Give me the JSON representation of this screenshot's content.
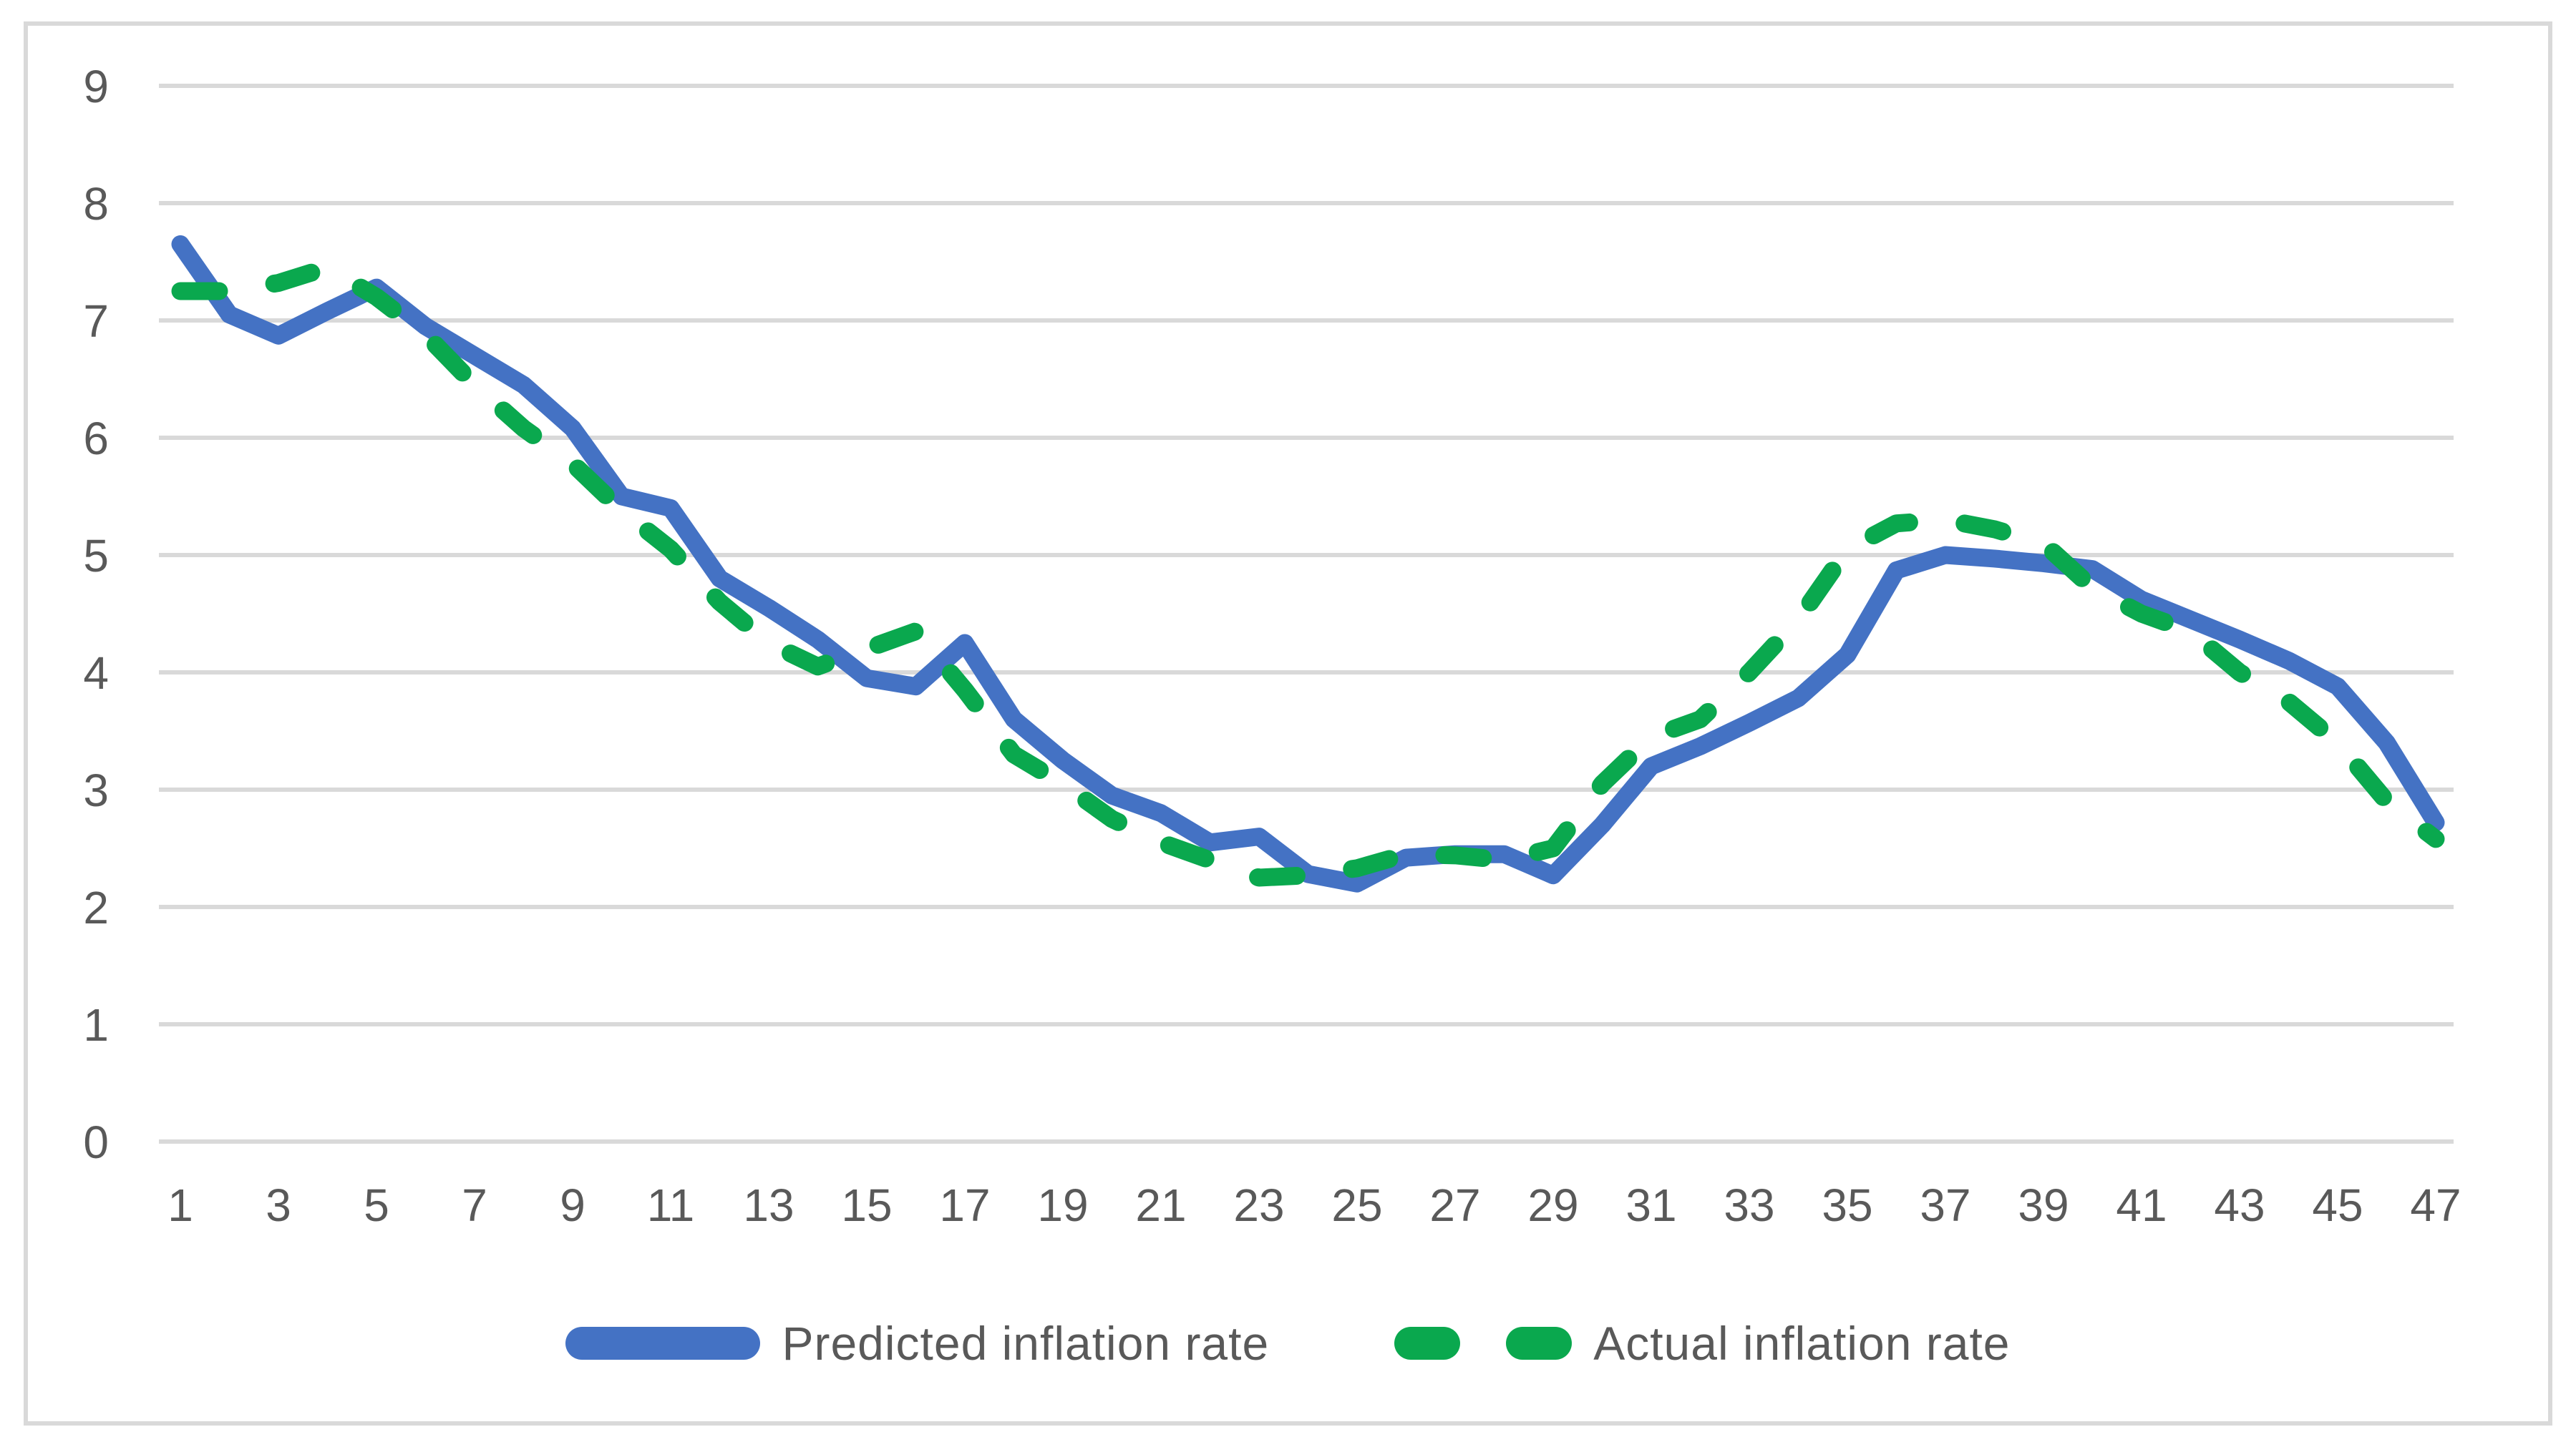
{
  "chart_data": {
    "type": "line",
    "title": "",
    "xlabel": "",
    "ylabel": "",
    "ylim": [
      0,
      9
    ],
    "ytick_interval": 1,
    "yticks": [
      0,
      1,
      2,
      3,
      4,
      5,
      6,
      7,
      8,
      9
    ],
    "x": [
      1,
      2,
      3,
      4,
      5,
      6,
      7,
      8,
      9,
      10,
      11,
      12,
      13,
      14,
      15,
      16,
      17,
      18,
      19,
      20,
      21,
      22,
      23,
      24,
      25,
      26,
      27,
      28,
      29,
      30,
      31,
      32,
      33,
      34,
      35,
      36,
      37,
      38,
      39,
      40,
      41,
      42,
      43,
      44,
      45,
      46,
      47
    ],
    "xticks_shown": [
      1,
      3,
      5,
      7,
      9,
      11,
      13,
      15,
      17,
      19,
      21,
      23,
      25,
      27,
      29,
      31,
      33,
      35,
      37,
      39,
      41,
      43,
      45,
      47
    ],
    "grid": "horizontal",
    "legend_position": "bottom-center",
    "series": [
      {
        "name": "Predicted inflation rate",
        "style": "solid",
        "color": "#4472C4",
        "values": [
          7.65,
          7.05,
          6.87,
          7.08,
          7.28,
          6.95,
          6.7,
          6.45,
          6.08,
          5.5,
          5.4,
          4.8,
          4.55,
          4.28,
          3.95,
          3.88,
          4.25,
          3.6,
          3.25,
          2.95,
          2.8,
          2.55,
          2.6,
          2.28,
          2.2,
          2.42,
          2.45,
          2.45,
          2.27,
          2.7,
          3.2,
          3.37,
          3.57,
          3.78,
          4.15,
          4.87,
          5.0,
          4.97,
          4.93,
          4.88,
          4.62,
          4.45,
          4.28,
          4.1,
          3.88,
          3.4,
          2.72
        ]
      },
      {
        "name": "Actual inflation rate",
        "style": "dashed",
        "color": "#0AA84E",
        "values": [
          7.25,
          7.25,
          7.32,
          7.45,
          7.2,
          6.88,
          6.45,
          6.08,
          5.78,
          5.38,
          5.05,
          4.6,
          4.25,
          4.05,
          4.2,
          4.35,
          3.85,
          3.3,
          3.05,
          2.75,
          2.55,
          2.4,
          2.25,
          2.27,
          2.33,
          2.45,
          2.44,
          2.4,
          2.5,
          3.05,
          3.45,
          3.6,
          4.0,
          4.45,
          5.05,
          5.27,
          5.3,
          5.22,
          5.1,
          4.72,
          4.5,
          4.35,
          4.0,
          3.75,
          3.4,
          2.9,
          2.58
        ]
      }
    ]
  },
  "colors": {
    "background": "#ffffff",
    "gridline": "#D9D9D9",
    "chart_border": "#D9D9D9",
    "axis_label_text": "#595959",
    "legend_text": "#595959"
  }
}
